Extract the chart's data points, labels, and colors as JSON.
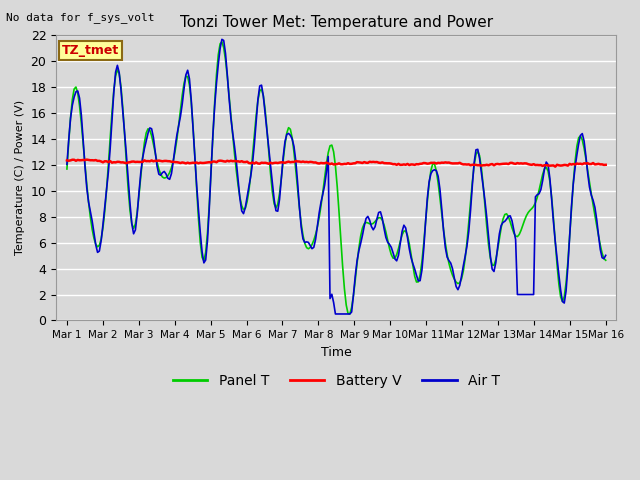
{
  "title": "Tonzi Tower Met: Temperature and Power",
  "xlabel": "Time",
  "ylabel": "Temperature (C) / Power (V)",
  "top_left_text": "No data for f_sys_volt",
  "annotation_box_text": "TZ_tmet",
  "annotation_box_color": "#FFFF99",
  "annotation_box_edge_color": "#8B6914",
  "annotation_text_color": "#CC0000",
  "ylim": [
    0,
    22
  ],
  "yticks": [
    0,
    2,
    4,
    6,
    8,
    10,
    12,
    14,
    16,
    18,
    20,
    22
  ],
  "xtick_labels": [
    "Mar 1",
    "Mar 2",
    "Mar 3",
    "Mar 4",
    "Mar 5",
    "Mar 6",
    "Mar 7",
    "Mar 8",
    "Mar 9",
    "Mar 10",
    "Mar 11",
    "Mar 12",
    "Mar 13",
    "Mar 14",
    "Mar 15",
    "Mar 16"
  ],
  "background_color": "#D9D9D9",
  "plot_bg_color": "#D9D9D9",
  "grid_color": "#FFFFFF",
  "legend_entries": [
    "Panel T",
    "Battery V",
    "Air T"
  ],
  "legend_colors": [
    "#00CC00",
    "#FF0000",
    "#0000CC"
  ],
  "panel_green": "#00CC00",
  "battery_red": "#FF0000",
  "air_blue": "#0000CC",
  "battery_v_mean": 12.2,
  "figwidth": 6.4,
  "figheight": 4.8,
  "dpi": 100
}
